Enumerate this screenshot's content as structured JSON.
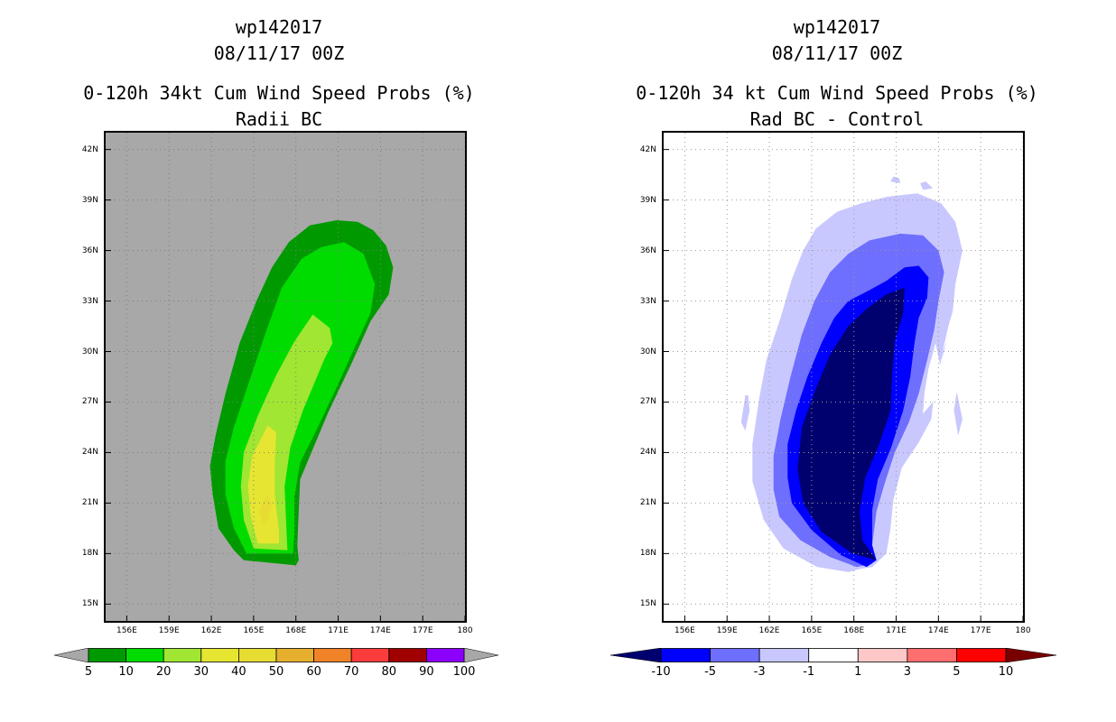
{
  "chart_data": [
    {
      "type": "filled-contour-map",
      "title_line1": "wp142017",
      "title_line2": "08/11/17 00Z",
      "title_line3": "0-120h 34kt Cum Wind Speed Probs (%)",
      "title_line4": "Radii BC",
      "x_tick_labels": [
        "156E",
        "159E",
        "162E",
        "165E",
        "168E",
        "171E",
        "174E",
        "177E",
        "180"
      ],
      "y_tick_labels": [
        "42N",
        "39N",
        "36N",
        "33N",
        "30N",
        "27N",
        "24N",
        "21N",
        "18N",
        "15N"
      ],
      "xlim": [
        154.5,
        180
      ],
      "ylim": [
        14,
        43
      ],
      "background_color": "#a8a8a8",
      "grid": "dotted",
      "contour_fill_levels": [
        10,
        20,
        30,
        40
      ],
      "colorbar": {
        "labels": [
          "5",
          "10",
          "20",
          "30",
          "40",
          "50",
          "60",
          "70",
          "80",
          "90",
          "100"
        ],
        "colors": [
          "#009a00",
          "#00dc00",
          "#a0e632",
          "#e6e632",
          "#e6dc32",
          "#e6af2d",
          "#f08228",
          "#fa3c3c",
          "#a00000",
          "#8c00ff"
        ],
        "end_arrow_color": "#a8a8a8"
      }
    },
    {
      "type": "filled-contour-map",
      "title_line1": "wp142017",
      "title_line2": "08/11/17 00Z",
      "title_line3": "0-120h 34 kt Cum Wind Speed Probs (%)",
      "title_line4": "Rad BC - Control",
      "x_tick_labels": [
        "156E",
        "159E",
        "162E",
        "165E",
        "168E",
        "171E",
        "174E",
        "177E",
        "180"
      ],
      "y_tick_labels": [
        "42N",
        "39N",
        "36N",
        "33N",
        "30N",
        "27N",
        "24N",
        "21N",
        "18N",
        "15N"
      ],
      "xlim": [
        154.5,
        180
      ],
      "ylim": [
        14,
        43
      ],
      "background_color": "#ffffff",
      "grid": "dotted",
      "contour_fill_levels": [
        -3,
        -5,
        -10
      ],
      "colorbar": {
        "labels": [
          "-10",
          "-5",
          "-3",
          "-1",
          "1",
          "3",
          "5",
          "10"
        ],
        "colors": [
          "#00006e",
          "#0000ff",
          "#6e6eff",
          "#c8c8ff",
          "#ffffff",
          "#ffc8c8",
          "#ff6e6e",
          "#ff0000",
          "#780000"
        ]
      }
    }
  ]
}
